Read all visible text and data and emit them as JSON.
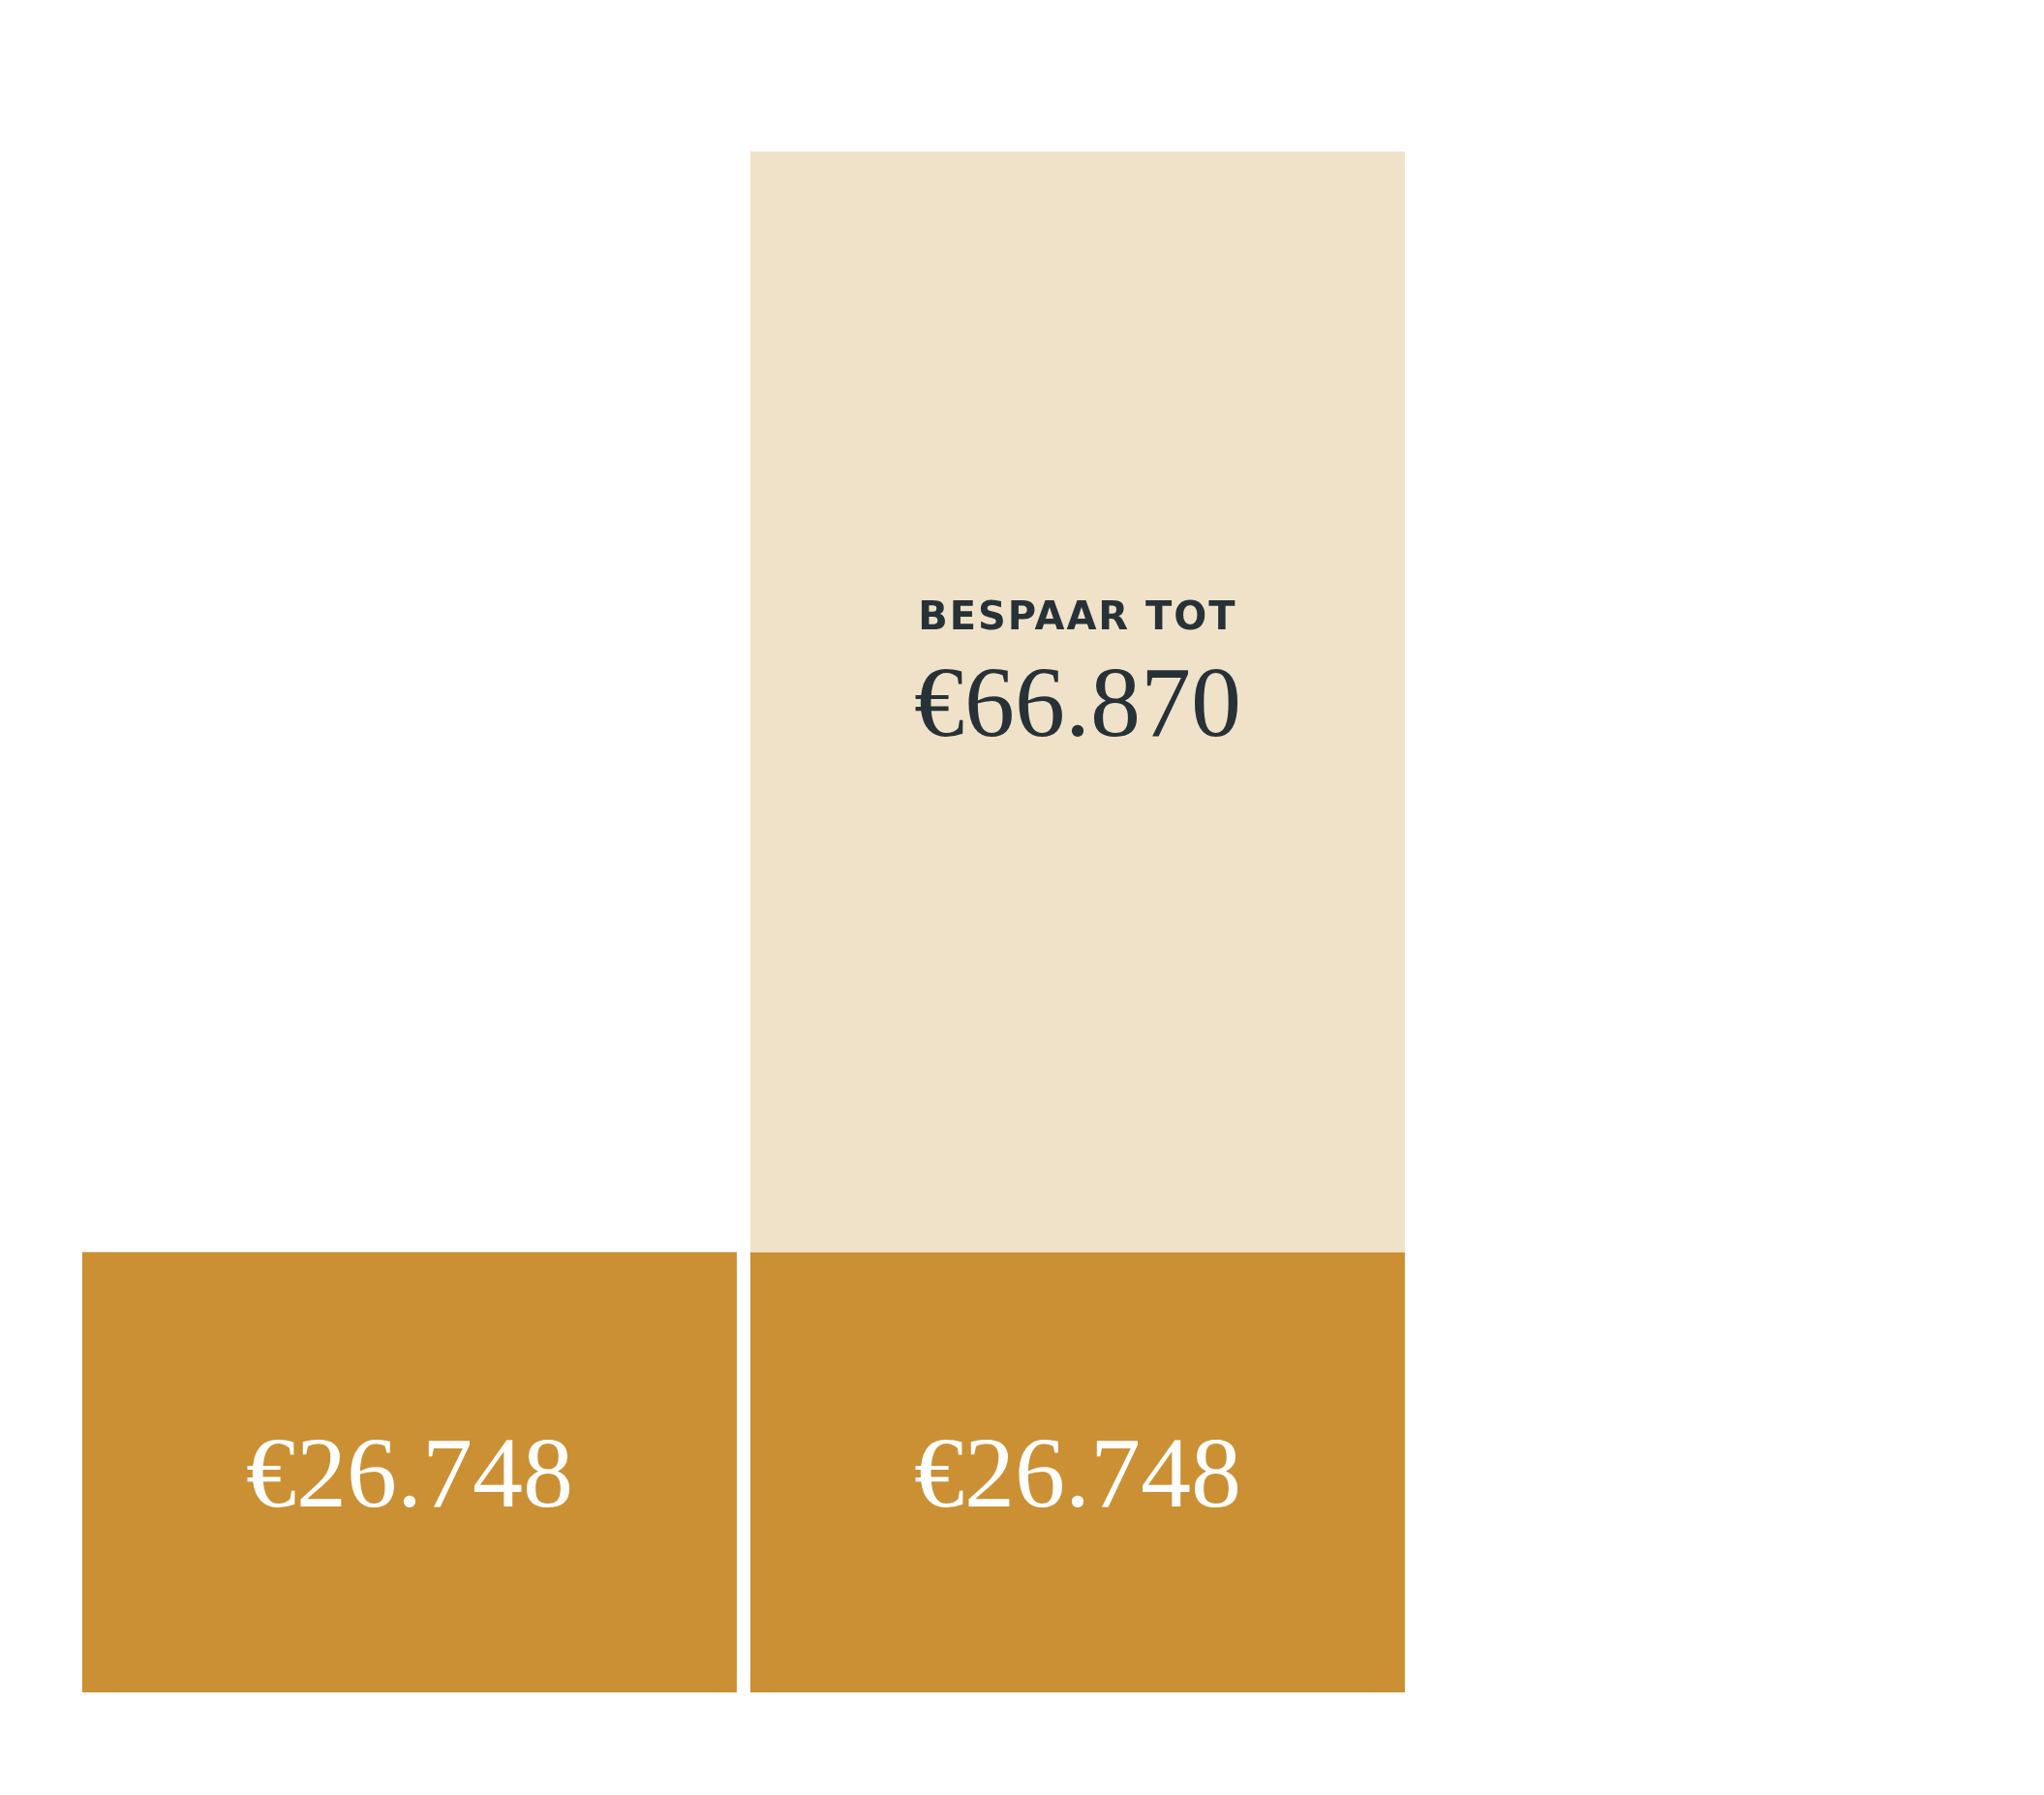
{
  "chart_data": {
    "type": "bar",
    "stacked": true,
    "categories": [
      null,
      null
    ],
    "series": [
      {
        "color": "#cb9033",
        "values": [
          26748,
          26748
        ],
        "value_labels": [
          "€26.748",
          "€26.748"
        ]
      },
      {
        "color": "#f0e2c9",
        "values": [
          null,
          66870
        ],
        "value_labels": [
          null,
          "€66.870"
        ]
      }
    ],
    "annotations": [
      "BESPAAR TOT"
    ],
    "legend": false,
    "grid": false,
    "tick_labels": false
  }
}
